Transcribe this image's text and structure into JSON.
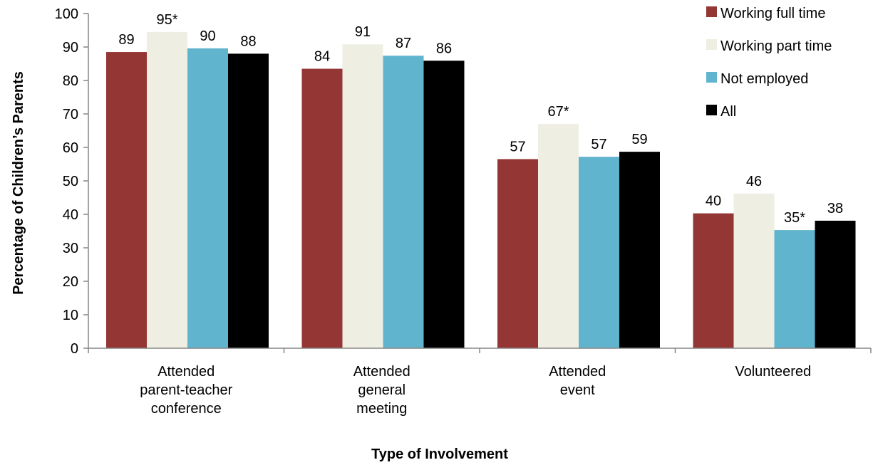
{
  "chart_data": {
    "type": "bar",
    "title": "",
    "xlabel": "Type of Involvement",
    "ylabel": "Percentage of Children’s Parents",
    "ylim": [
      0,
      100
    ],
    "yticks": [
      0,
      10,
      20,
      30,
      40,
      50,
      60,
      70,
      80,
      90,
      100
    ],
    "grid": false,
    "legend_position": "top-right",
    "categories": [
      [
        "Attended",
        "parent-teacher",
        "conference"
      ],
      [
        "Attended",
        "general",
        "meeting"
      ],
      [
        "Attended",
        "event"
      ],
      [
        "Volunteered"
      ]
    ],
    "series": [
      {
        "name": "Working full time",
        "color": "#943634",
        "values": [
          88.5,
          83.5,
          56.5,
          40.3
        ],
        "labels": [
          "89",
          "84",
          "57",
          "40"
        ]
      },
      {
        "name": "Working part time",
        "color": "#EEEFE2",
        "values": [
          94.5,
          90.8,
          67.0,
          46.2
        ],
        "labels": [
          "95*",
          "91",
          "67*",
          "46"
        ]
      },
      {
        "name": "Not employed",
        "color": "#61B4CD",
        "values": [
          89.6,
          87.4,
          57.2,
          35.3
        ],
        "labels": [
          "90",
          "87",
          "57",
          "35*"
        ]
      },
      {
        "name": "All",
        "color": "#000000",
        "values": [
          88.0,
          85.9,
          58.7,
          38.1
        ],
        "labels": [
          "88",
          "86",
          "59",
          "38"
        ]
      }
    ]
  }
}
